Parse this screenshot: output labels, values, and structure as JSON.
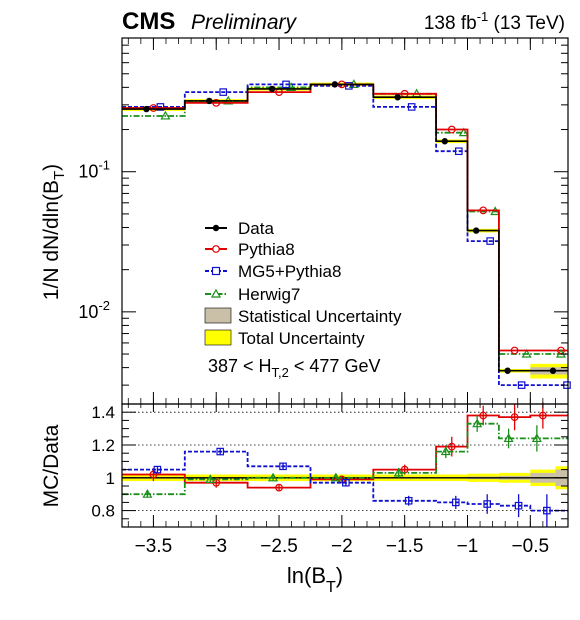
{
  "header": {
    "experiment": "CMS",
    "status": "Preliminary",
    "lumi": "138 fb",
    "lumi_sup": "-1",
    "energy": " (13 TeV)"
  },
  "chart_data": [
    {
      "panel": "main",
      "type": "line",
      "ylabel": "1/N dN/dln(B_T)",
      "yscale": "log",
      "ylim": [
        0.0022,
        0.9
      ],
      "xlim": [
        -3.75,
        -0.2
      ],
      "y_ticks": [
        {
          "value": 0.1,
          "label": "10^-1"
        },
        {
          "value": 0.01,
          "label": "10^-2"
        }
      ],
      "bin_edges": [
        -3.75,
        -3.25,
        -2.75,
        -2.25,
        -1.75,
        -1.25,
        -1.0,
        -0.75,
        -0.5,
        -0.3,
        -0.2
      ],
      "annotation": "387 < H_T,2 < 477 GeV",
      "legend_position": "center-left",
      "series": [
        {
          "name": "Data",
          "color": "#000000",
          "style": "solid",
          "marker": "filled-circle",
          "values": [
            0.28,
            0.32,
            0.39,
            0.42,
            0.34,
            0.165,
            0.038,
            0.0038,
            0.0038,
            0.0038
          ]
        },
        {
          "name": "Pythia8",
          "color": "#e00000",
          "style": "solid",
          "marker": "open-circle",
          "values": [
            0.285,
            0.31,
            0.37,
            0.42,
            0.36,
            0.2,
            0.053,
            0.0053,
            0.0053,
            0.0053
          ]
        },
        {
          "name": "MG5+Pythia8",
          "color": "#1010d0",
          "style": "dashed",
          "marker": "open-square",
          "values": [
            0.29,
            0.37,
            0.42,
            0.41,
            0.29,
            0.14,
            0.032,
            0.003,
            0.003,
            0.003
          ]
        },
        {
          "name": "Herwig7",
          "color": "#1a8f1a",
          "style": "dashdot",
          "marker": "open-triangle",
          "values": [
            0.25,
            0.32,
            0.4,
            0.42,
            0.36,
            0.19,
            0.052,
            0.005,
            0.005,
            0.005
          ]
        }
      ],
      "bands": [
        {
          "name": "Statistical Uncertainty",
          "color": "#c9c0a7"
        },
        {
          "name": "Total Uncertainty",
          "color": "#ffff00"
        }
      ]
    },
    {
      "panel": "ratio",
      "type": "line",
      "ylabel": "MC/Data",
      "xlabel": "ln(B_T)",
      "ylim": [
        0.7,
        1.45
      ],
      "xlim": [
        -3.75,
        -0.2
      ],
      "y_ticks": [
        0.8,
        1,
        1.2,
        1.4
      ],
      "y_tick_labels": [
        "0.8",
        "1",
        "1.2",
        "1.4"
      ],
      "x_ticks": [
        -3.5,
        -3,
        -2.5,
        -2,
        -1.5,
        -1,
        -0.5
      ],
      "x_tick_labels": [
        "−3.5",
        "−3",
        "−2.5",
        "−2",
        "−1.5",
        "−1",
        "−0.5"
      ],
      "reference_lines": [
        0.8,
        1.2,
        1.4
      ],
      "bin_edges": [
        -3.75,
        -3.25,
        -2.75,
        -2.25,
        -1.75,
        -1.25,
        -1.0,
        -0.75,
        -0.5,
        -0.3,
        -0.2
      ],
      "total_uncertainty": [
        0.02,
        0.02,
        0.02,
        0.02,
        0.02,
        0.02,
        0.025,
        0.03,
        0.05,
        0.07
      ],
      "stat_uncertainty": [
        0.005,
        0.005,
        0.005,
        0.005,
        0.005,
        0.005,
        0.008,
        0.012,
        0.03,
        0.05
      ],
      "series": [
        {
          "name": "Pythia8",
          "color": "#e00000",
          "style": "solid",
          "marker": "open-circle",
          "values": [
            1.02,
            0.97,
            0.94,
            0.99,
            1.05,
            1.19,
            1.38,
            1.37,
            1.38,
            1.38
          ],
          "errors": [
            0.04,
            0.03,
            0.02,
            0.02,
            0.03,
            0.06,
            0.06,
            0.08,
            0.08,
            0.08
          ]
        },
        {
          "name": "MG5+Pythia8",
          "color": "#1010d0",
          "style": "dashed",
          "marker": "open-square",
          "values": [
            1.05,
            1.16,
            1.07,
            0.97,
            0.86,
            0.85,
            0.84,
            0.83,
            0.8,
            0.8
          ],
          "errors": [
            0.02,
            0.02,
            0.02,
            0.02,
            0.03,
            0.04,
            0.06,
            0.07,
            0.1,
            0.1
          ]
        },
        {
          "name": "Herwig7",
          "color": "#1a8f1a",
          "style": "dashdot",
          "marker": "open-triangle",
          "values": [
            0.9,
            0.99,
            1.0,
            1.0,
            1.03,
            1.16,
            1.33,
            1.24,
            1.24,
            1.24
          ],
          "errors": [
            0.02,
            0.02,
            0.02,
            0.02,
            0.03,
            0.04,
            0.05,
            0.06,
            0.08,
            0.08
          ]
        }
      ]
    }
  ]
}
